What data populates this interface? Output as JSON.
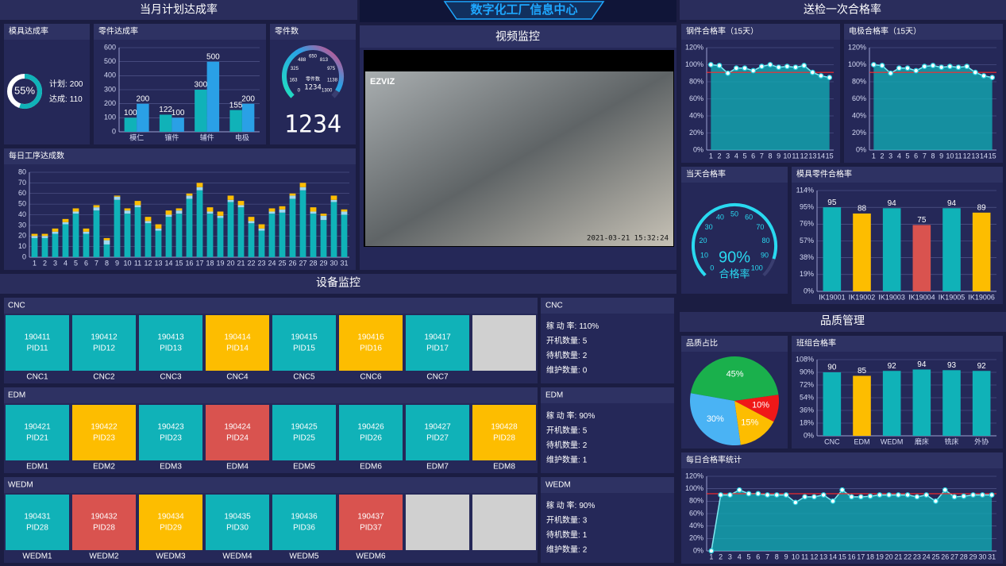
{
  "header": {
    "title": "数字化工厂信息中心"
  },
  "sections": {
    "plan": "当月计划达成率",
    "video": "视频监控",
    "inspection": "送检一次合格率",
    "equipment": "设备监控",
    "quality": "品质管理"
  },
  "video": {
    "logo": "EZVIZ",
    "timestamp": "2021-03-21 15:32:24"
  },
  "chart_data": [
    {
      "type": "donut",
      "title": "模具达成率",
      "value": 55,
      "value_label": "55%",
      "color": "#10b2b8",
      "items": [
        {
          "label": "计划:",
          "value": 200
        },
        {
          "label": "达成:",
          "value": 110
        }
      ]
    },
    {
      "type": "bar",
      "title": "零件达成率",
      "categories": [
        "模仁",
        "镶件",
        "辅件",
        "电极"
      ],
      "series": [
        {
          "color": "#10b2b8",
          "values": [
            100,
            122,
            300,
            155
          ]
        },
        {
          "color": "#2aa0e6",
          "values": [
            200,
            100,
            500,
            200
          ]
        }
      ],
      "ylim": [
        0,
        600
      ],
      "yticks": [
        0,
        100,
        200,
        300,
        400,
        500,
        600
      ],
      "data_labels": true
    },
    {
      "type": "gauge",
      "title": "零件数",
      "label": "零件数",
      "value": 1234,
      "digital": true,
      "lim": [
        0,
        1300
      ],
      "ticks": [
        0,
        163,
        325,
        488,
        650,
        813,
        975,
        1138,
        1300
      ]
    },
    {
      "type": "bar",
      "title": "每日工序达成数",
      "stacked": true,
      "categories": [
        "1",
        "2",
        "3",
        "4",
        "5",
        "6",
        "7",
        "8",
        "9",
        "10",
        "11",
        "12",
        "13",
        "14",
        "15",
        "16",
        "17",
        "18",
        "19",
        "20",
        "21",
        "22",
        "23",
        "24",
        "25",
        "26",
        "27",
        "28",
        "29",
        "30",
        "31"
      ],
      "series": [
        {
          "color": "#10b2b8",
          "values": [
            18,
            18,
            22,
            31,
            41,
            22,
            44,
            12,
            54,
            41,
            47,
            32,
            25,
            38,
            41,
            55,
            63,
            41,
            37,
            52,
            47,
            32,
            25,
            41,
            42,
            55,
            63,
            41,
            35,
            52,
            40
          ]
        },
        {
          "color": "#9ed8f0",
          "values": [
            2,
            2,
            2,
            2,
            2,
            2,
            3,
            4,
            3,
            3,
            2,
            2,
            2,
            2,
            3,
            3,
            3,
            2,
            2,
            2,
            2,
            2,
            2,
            2,
            3,
            3,
            3,
            2,
            4,
            2,
            3
          ]
        },
        {
          "color": "#fdbd00",
          "values": [
            2,
            2,
            3,
            3,
            3,
            3,
            2,
            2,
            1,
            2,
            4,
            4,
            4,
            4,
            2,
            2,
            4,
            4,
            4,
            4,
            4,
            4,
            4,
            3,
            3,
            2,
            4,
            4,
            2,
            4,
            2
          ]
        }
      ],
      "ylim": [
        0,
        80
      ],
      "yticks": [
        0,
        10,
        20,
        30,
        40,
        50,
        60,
        70,
        80
      ]
    },
    {
      "type": "line",
      "title": "钢件合格率（15天）",
      "categories": [
        "1",
        "2",
        "3",
        "4",
        "5",
        "6",
        "7",
        "8",
        "9",
        "10",
        "11",
        "12",
        "13",
        "14",
        "15"
      ],
      "values": [
        100,
        99,
        90,
        96,
        96,
        93,
        98,
        100,
        97,
        98,
        97,
        99,
        91,
        87,
        85
      ],
      "reference_line": 91,
      "ylim": [
        0,
        120
      ],
      "yticks": [
        {
          "value": 0,
          "label": "0%"
        },
        {
          "value": 20,
          "label": "20%"
        },
        {
          "value": 40,
          "label": "40%"
        },
        {
          "value": 60,
          "label": "60%"
        },
        {
          "value": 80,
          "label": "80%"
        },
        {
          "value": 100,
          "label": "100%"
        },
        {
          "value": 120,
          "label": "120%"
        }
      ]
    },
    {
      "type": "line",
      "title": "电极合格率（15天）",
      "categories": [
        "1",
        "2",
        "3",
        "4",
        "5",
        "6",
        "7",
        "8",
        "9",
        "10",
        "11",
        "12",
        "13",
        "14",
        "15"
      ],
      "values": [
        100,
        99,
        90,
        96,
        96,
        93,
        98,
        99,
        97,
        98,
        97,
        98,
        91,
        87,
        85
      ],
      "reference_line": 91,
      "ylim": [
        0,
        120
      ],
      "yticks": [
        {
          "value": 0,
          "label": "0%"
        },
        {
          "value": 20,
          "label": "20%"
        },
        {
          "value": 40,
          "label": "40%"
        },
        {
          "value": 60,
          "label": "60%"
        },
        {
          "value": 80,
          "label": "80%"
        },
        {
          "value": 100,
          "label": "100%"
        },
        {
          "value": 120,
          "label": "120%"
        }
      ]
    },
    {
      "type": "gauge",
      "title": "当天合格率",
      "label": "合格率",
      "value": 90,
      "value_label": "90%",
      "lim": [
        0,
        100
      ],
      "ticks": [
        0,
        10,
        20,
        30,
        40,
        50,
        60,
        70,
        80,
        90,
        100
      ]
    },
    {
      "type": "bar",
      "title": "模具零件合格率",
      "categories": [
        "IK19001",
        "IK19002",
        "IK19003",
        "IK19004",
        "IK19005",
        "IK19006"
      ],
      "values": [
        95,
        88,
        94,
        75,
        94,
        89
      ],
      "colors": [
        "#10b2b8",
        "#fdbd00",
        "#10b2b8",
        "#d9534f",
        "#10b2b8",
        "#fdbd00"
      ],
      "data_labels": true,
      "ylim": [
        0,
        114
      ],
      "yticks": [
        {
          "value": 0,
          "label": "0%"
        },
        {
          "value": 19,
          "label": "19%"
        },
        {
          "value": 38,
          "label": "38%"
        },
        {
          "value": 57,
          "label": "57%"
        },
        {
          "value": 76,
          "label": "76%"
        },
        {
          "value": 95,
          "label": "95%"
        },
        {
          "value": 114,
          "label": "114%"
        }
      ]
    },
    {
      "type": "pie",
      "title": "品质占比",
      "values": [
        45,
        10,
        15,
        30
      ],
      "value_labels": [
        "45%",
        "10%",
        "15%",
        "30%"
      ],
      "colors": [
        "#1ab04c",
        "#f01818",
        "#fdbd00",
        "#4ab3f4"
      ]
    },
    {
      "type": "bar",
      "title": "班组合格率",
      "categories": [
        "CNC",
        "EDM",
        "WEDM",
        "磨床",
        "铣床",
        "外协"
      ],
      "values": [
        90,
        85,
        92,
        94,
        93,
        92
      ],
      "colors": [
        "#10b2b8",
        "#fdbd00",
        "#10b2b8",
        "#10b2b8",
        "#10b2b8",
        "#10b2b8"
      ],
      "data_labels": true,
      "ylim": [
        0,
        108
      ],
      "yticks": [
        {
          "value": 0,
          "label": "0%"
        },
        {
          "value": 18,
          "label": "18%"
        },
        {
          "value": 36,
          "label": "36%"
        },
        {
          "value": 54,
          "label": "54%"
        },
        {
          "value": 72,
          "label": "72%"
        },
        {
          "value": 90,
          "label": "90%"
        },
        {
          "value": 108,
          "label": "108%"
        }
      ]
    },
    {
      "type": "line",
      "title": "每日合格率统计",
      "categories": [
        "1",
        "2",
        "3",
        "4",
        "5",
        "6",
        "7",
        "8",
        "9",
        "10",
        "11",
        "12",
        "13",
        "14",
        "15",
        "16",
        "17",
        "18",
        "19",
        "20",
        "21",
        "22",
        "23",
        "24",
        "25",
        "26",
        "27",
        "28",
        "29",
        "30",
        "31"
      ],
      "values": [
        0,
        90,
        90,
        98,
        92,
        92,
        90,
        90,
        90,
        78,
        87,
        87,
        90,
        80,
        98,
        87,
        87,
        88,
        90,
        90,
        90,
        90,
        87,
        90,
        80,
        98,
        87,
        88,
        90,
        90,
        90
      ],
      "reference_line": 92,
      "ylim": [
        0,
        120
      ],
      "yticks": [
        {
          "value": 0,
          "label": "0%"
        },
        {
          "value": 20,
          "label": "20%"
        },
        {
          "value": 40,
          "label": "40%"
        },
        {
          "value": 60,
          "label": "60%"
        },
        {
          "value": 80,
          "label": "80%"
        },
        {
          "value": 100,
          "label": "100%"
        },
        {
          "value": 120,
          "label": "120%"
        }
      ]
    }
  ],
  "equipment": [
    {
      "title": "CNC",
      "stats_title": "CNC",
      "machines": [
        {
          "code": "190411",
          "pid": "PID11",
          "name": "CNC1",
          "color": "#10b2b8"
        },
        {
          "code": "190412",
          "pid": "PID12",
          "name": "CNC2",
          "color": "#10b2b8"
        },
        {
          "code": "190413",
          "pid": "PID13",
          "name": "CNC3",
          "color": "#10b2b8"
        },
        {
          "code": "190414",
          "pid": "PID14",
          "name": "CNC4",
          "color": "#fdbd00"
        },
        {
          "code": "190415",
          "pid": "PID15",
          "name": "CNC5",
          "color": "#10b2b8"
        },
        {
          "code": "190416",
          "pid": "PID16",
          "name": "CNC6",
          "color": "#fdbd00"
        },
        {
          "code": "190417",
          "pid": "PID17",
          "name": "CNC7",
          "color": "#10b2b8"
        },
        {
          "color": "#d0d0d0"
        }
      ],
      "stats": [
        {
          "label": "稼 动 率:",
          "value": "110%"
        },
        {
          "label": "开机数量:",
          "value": 5
        },
        {
          "label": "待机数量:",
          "value": 2
        },
        {
          "label": "维护数量:",
          "value": 0
        }
      ]
    },
    {
      "title": "EDM",
      "stats_title": "EDM",
      "machines": [
        {
          "code": "190421",
          "pid": "PID21",
          "name": "EDM1",
          "color": "#10b2b8"
        },
        {
          "code": "190422",
          "pid": "PID23",
          "name": "EDM2",
          "color": "#fdbd00"
        },
        {
          "code": "190423",
          "pid": "PID23",
          "name": "EDM3",
          "color": "#10b2b8"
        },
        {
          "code": "190424",
          "pid": "PID24",
          "name": "EDM4",
          "color": "#d9534f"
        },
        {
          "code": "190425",
          "pid": "PID25",
          "name": "EDM5",
          "color": "#10b2b8"
        },
        {
          "code": "190426",
          "pid": "PID26",
          "name": "EDM6",
          "color": "#10b2b8"
        },
        {
          "code": "190427",
          "pid": "PID27",
          "name": "EDM7",
          "color": "#10b2b8"
        },
        {
          "code": "190428",
          "pid": "PID28",
          "name": "EDM8",
          "color": "#fdbd00"
        }
      ],
      "stats": [
        {
          "label": "稼 动 率:",
          "value": "90%"
        },
        {
          "label": "开机数量:",
          "value": 5
        },
        {
          "label": "待机数量:",
          "value": 2
        },
        {
          "label": "维护数量:",
          "value": 1
        }
      ]
    },
    {
      "title": "WEDM",
      "stats_title": "WEDM",
      "machines": [
        {
          "code": "190431",
          "pid": "PID28",
          "name": "WEDM1",
          "color": "#10b2b8"
        },
        {
          "code": "190432",
          "pid": "PID28",
          "name": "WEDM2",
          "color": "#d9534f"
        },
        {
          "code": "190434",
          "pid": "PID29",
          "name": "WEDM3",
          "color": "#fdbd00"
        },
        {
          "code": "190435",
          "pid": "PID30",
          "name": "WEDM4",
          "color": "#10b2b8"
        },
        {
          "code": "190436",
          "pid": "PID36",
          "name": "WEDM5",
          "color": "#10b2b8"
        },
        {
          "code": "190437",
          "pid": "PID37",
          "name": "WEDM6",
          "color": "#d9534f"
        },
        {
          "color": "#d0d0d0"
        },
        {
          "color": "#d0d0d0"
        }
      ],
      "stats": [
        {
          "label": "稼 动 率:",
          "value": "90%"
        },
        {
          "label": "开机数量:",
          "value": 3
        },
        {
          "label": "待机数量:",
          "value": 1
        },
        {
          "label": "维护数量:",
          "value": 2
        }
      ]
    }
  ]
}
